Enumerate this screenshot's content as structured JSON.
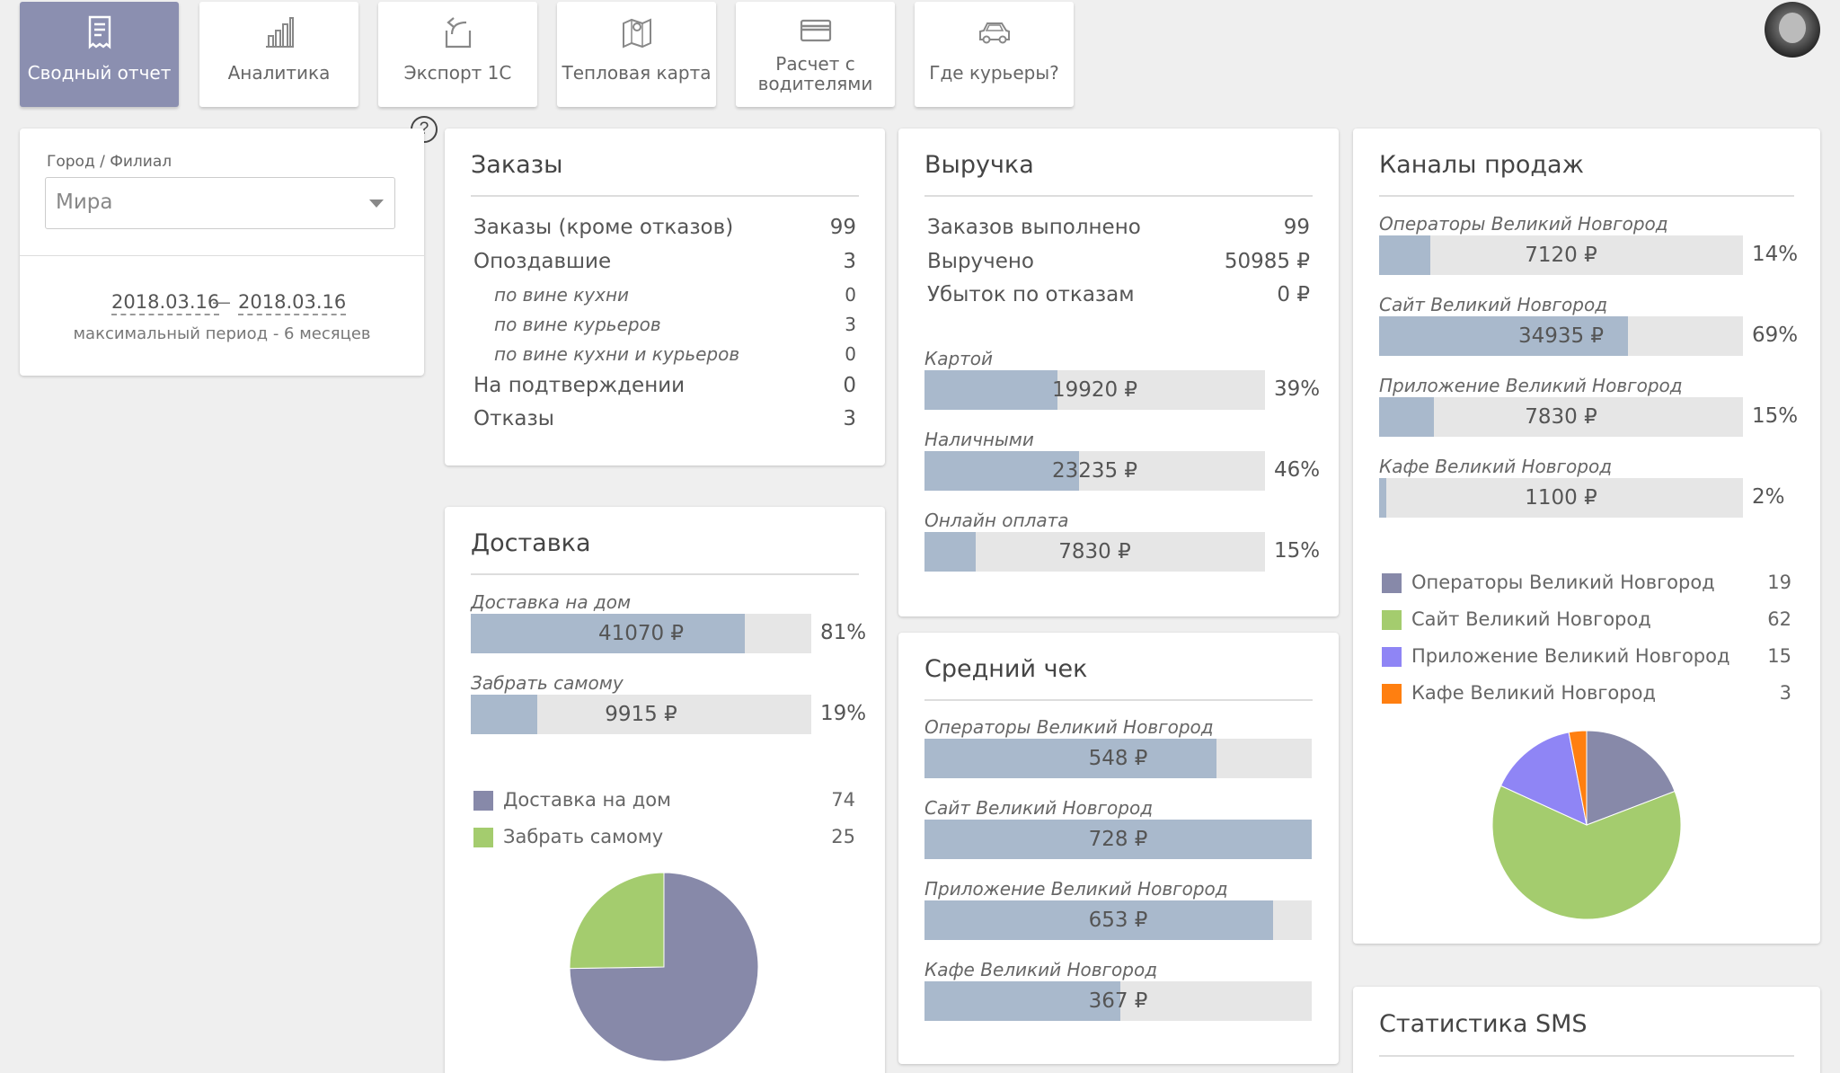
{
  "nav": {
    "tabs": [
      {
        "label": "Сводный отчет",
        "icon": "receipt-icon"
      },
      {
        "label": "Аналитика",
        "icon": "bar-chart-icon"
      },
      {
        "label": "Экспорт 1С",
        "icon": "export-icon"
      },
      {
        "label": "Тепловая карта",
        "icon": "map-pin-icon"
      },
      {
        "label_line1": "Расчет с",
        "label_line2": "водителями",
        "icon": "credit-card-icon"
      },
      {
        "label": "Где курьеры?",
        "icon": "car-icon"
      }
    ]
  },
  "help": {
    "symbol": "?"
  },
  "filter": {
    "city_label": "Город / Филиал",
    "city_value": "Мира",
    "date_from": "2018.03.16",
    "date_sep": "—",
    "date_to": "2018.03.16",
    "period_note": "максимальный период - 6 месяцев"
  },
  "orders": {
    "title": "Заказы",
    "rows": [
      {
        "label": "Заказы (кроме отказов)",
        "value": "99"
      },
      {
        "label": "Опоздавшие",
        "value": "3"
      },
      {
        "label": "по вине кухни",
        "value": "0"
      },
      {
        "label": "по вине курьеров",
        "value": "3"
      },
      {
        "label": "по вине кухни и курьеров",
        "value": "0"
      },
      {
        "label": "На подтверждении",
        "value": "0"
      },
      {
        "label": "Отказы",
        "value": "3"
      }
    ]
  },
  "revenue": {
    "title": "Выручка",
    "rows": [
      {
        "label": "Заказов выполнено",
        "value": "99"
      },
      {
        "label": "Выручено",
        "value": "50985 ₽"
      },
      {
        "label": "Убыток по отказам",
        "value": "0 ₽"
      }
    ],
    "bars": [
      {
        "caption": "Картой",
        "amount": "19920 ₽",
        "percent": "39%",
        "fraction": 0.39
      },
      {
        "caption": "Наличными",
        "amount": "23235 ₽",
        "percent": "46%",
        "fraction": 0.455
      },
      {
        "caption": "Онлайн оплата",
        "amount": "7830 ₽",
        "percent": "15%",
        "fraction": 0.15
      }
    ]
  },
  "delivery": {
    "title": "Доставка",
    "bars": [
      {
        "caption": "Доставка на дом",
        "amount": "41070 ₽",
        "percent": "81%",
        "fraction": 0.805
      },
      {
        "caption": "Забрать самому",
        "amount": "9915 ₽",
        "percent": "19%",
        "fraction": 0.195
      }
    ],
    "legend": [
      {
        "label": "Доставка на дом",
        "value": "74",
        "color": "#8789a9"
      },
      {
        "label": "Забрать самому",
        "value": "25",
        "color": "#a4cc6e"
      }
    ]
  },
  "avg_check": {
    "title": "Средний чек",
    "bars": [
      {
        "caption": "Операторы Великий Новгород",
        "amount": "548 ₽",
        "fraction": 0.755
      },
      {
        "caption": "Сайт Великий Новгород",
        "amount": "728 ₽",
        "fraction": 1.0
      },
      {
        "caption": "Приложение Великий Новгород",
        "amount": "653 ₽",
        "fraction": 0.9
      },
      {
        "caption": "Кафе Великий Новгород",
        "amount": "367 ₽",
        "fraction": 0.505
      }
    ]
  },
  "channels": {
    "title": "Каналы продаж",
    "bars": [
      {
        "caption": "Операторы Великий Новгород",
        "amount": "7120 ₽",
        "percent": "14%",
        "fraction": 0.14
      },
      {
        "caption": "Сайт Великий Новгород",
        "amount": "34935 ₽",
        "percent": "69%",
        "fraction": 0.685
      },
      {
        "caption": "Приложение Великий Новгород",
        "amount": "7830 ₽",
        "percent": "15%",
        "fraction": 0.15
      },
      {
        "caption": "Кафе Великий Новгород",
        "amount": "1100 ₽",
        "percent": "2%",
        "fraction": 0.02
      }
    ],
    "legend": [
      {
        "label": "Операторы Великий Новгород",
        "value": "19",
        "color": "#8789a9"
      },
      {
        "label": "Сайт Великий Новгород",
        "value": "62",
        "color": "#a4cc6e"
      },
      {
        "label": "Приложение Великий Новгород",
        "value": "15",
        "color": "#8f85f5"
      },
      {
        "label": "Кафе Великий Новгород",
        "value": "3",
        "color": "#ff7f10"
      }
    ]
  },
  "sms": {
    "title": "Статистика SMS"
  },
  "chart_data": [
    {
      "type": "pie",
      "categories": [
        "Доставка на дом",
        "Забрать самому"
      ],
      "values": [
        74,
        25
      ],
      "colors": [
        "#8789a9",
        "#a4cc6e"
      ]
    },
    {
      "type": "pie",
      "categories": [
        "Операторы Великий Новгород",
        "Сайт Великий Новгород",
        "Приложение Великий Новгород",
        "Кафе Великий Новгород"
      ],
      "values": [
        19,
        62,
        15,
        3
      ],
      "colors": [
        "#8789a9",
        "#a4cc6e",
        "#8f85f5",
        "#ff7f10"
      ]
    }
  ]
}
